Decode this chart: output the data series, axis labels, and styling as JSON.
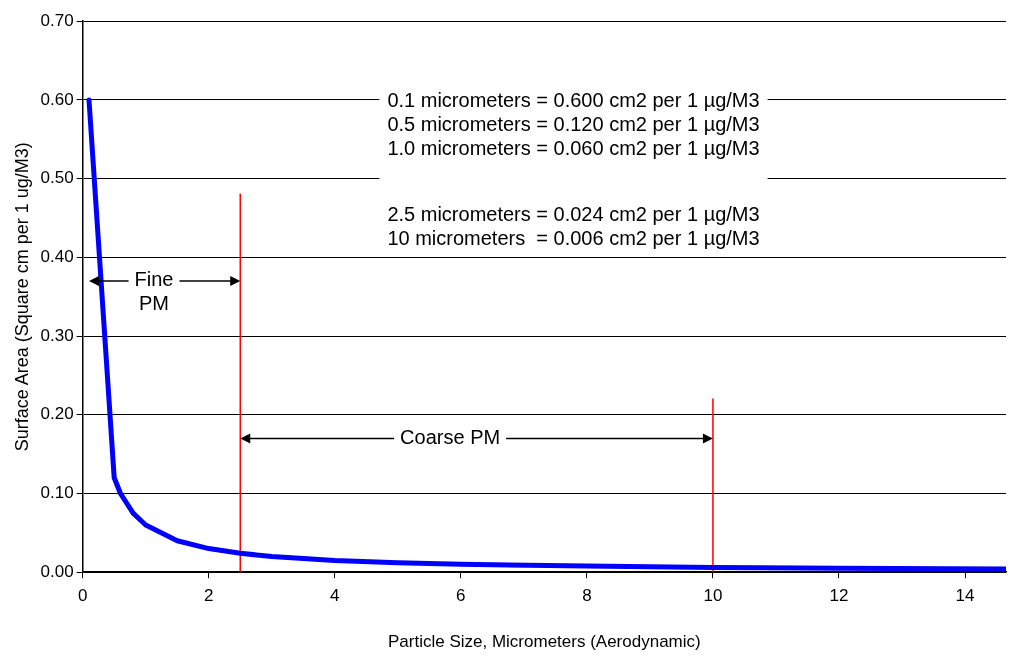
{
  "chart_data": {
    "type": "line",
    "xlabel": "Particle Size, Micrometers (Aerodynamic)",
    "ylabel": "Surface Area (Square cm per 1 ug/M3)",
    "xlim": [
      0,
      14.65
    ],
    "xticks": [
      0,
      2,
      4,
      6,
      8,
      10,
      12,
      14
    ],
    "ylim": [
      0,
      0.7
    ],
    "yticks": [
      {
        "value": 0,
        "label": "0.00"
      },
      {
        "value": 0.1,
        "label": "0.10"
      },
      {
        "value": 0.2,
        "label": "0.20"
      },
      {
        "value": 0.3,
        "label": "0.30"
      },
      {
        "value": 0.4,
        "label": "0.40"
      },
      {
        "value": 0.5,
        "label": "0.50"
      },
      {
        "value": 0.6,
        "label": "0.60"
      },
      {
        "value": 0.7,
        "label": "0.70"
      }
    ],
    "grid": "y",
    "legend": false,
    "marker": "none",
    "line_style": "solid",
    "series": [
      {
        "color": "#0000ff",
        "x": [
          0.1,
          0.3,
          0.5,
          0.6,
          0.8,
          1.0,
          1.5,
          2,
          2.5,
          3,
          4,
          5,
          6,
          8,
          10,
          12,
          14.65
        ],
        "values": [
          0.6,
          0.36,
          0.12,
          0.1,
          0.075,
          0.06,
          0.04,
          0.03,
          0.024,
          0.02,
          0.015,
          0.012,
          0.01,
          0.008,
          0.006,
          0.005,
          0.004
        ]
      },
      {
        "color": "#ff0000",
        "x": [
          2.5,
          2.5
        ],
        "values": [
          0,
          0.48
        ]
      },
      {
        "color": "#ff0000",
        "x": [
          10,
          10
        ],
        "values": [
          0,
          0.22
        ]
      }
    ],
    "annotations": [
      {
        "text": "Fine PM",
        "x": 2.5,
        "y": 0.37
      },
      {
        "text": "Coarse PM",
        "x": 10,
        "y": 0.17
      },
      "0.1 micrometers = 0.600 cm2 per 1 µg/M3",
      "0.5 micrometers = 0.120 cm2 per 1 µg/M3",
      "1.0 micrometers = 0.060 cm2 per 1 µg/M3",
      "2.5 micrometers = 0.024 cm2 per 1 µg/M3",
      "10 micrometers  = 0.006 cm2 per 1 µg/M3"
    ]
  }
}
